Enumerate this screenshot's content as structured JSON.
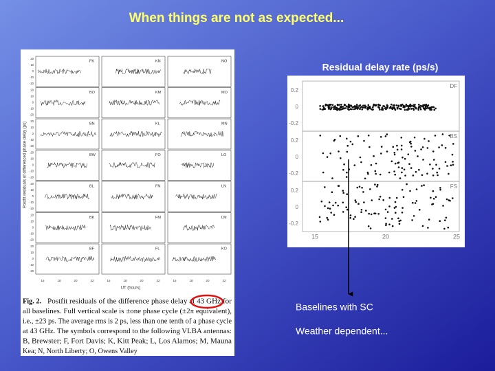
{
  "title": "When things are not as expected...",
  "left_figure": {
    "panel_labels": [
      "FK",
      "KN",
      "NO",
      "BO",
      "KM",
      "MO",
      "BN",
      "KL",
      "MN",
      "BW",
      "FO",
      "LO",
      "BL",
      "FN",
      "LN",
      "BK",
      "FM",
      "LM",
      "BF",
      "FL",
      "KO"
    ],
    "y_ticks": [
      "20",
      "10",
      "0",
      "-10",
      "-20"
    ],
    "x_ticks": [
      "16",
      "18",
      "20",
      "22"
    ],
    "y_axis_label": "Postfit residuals of differenced phase delay (ps)",
    "x_axis_label": "UT (hours)",
    "caption_label": "Fig. 2.",
    "caption_lines": [
      "Postfit residuals of the difference phase delay at 43 GHz for",
      "all baselines. Full vertical scale is ±one phase cycle (±2π equivalent),",
      "i.e., ±23 ps. The average rms is 2 ps, less than one tenth of a phase cycle",
      "at 43 GHz. The symbols correspond to the following VLBA antennas:",
      "B, Brewster; F, Fort Davis; K, Kitt Peak; L, Los Alamos; M, Mauna",
      "Kea; N, North Liberty; O, Owens Valley"
    ]
  },
  "right_figure": {
    "title": "Residual delay rate (ps/s)",
    "panel_labels": [
      "DF",
      "BS",
      "FS"
    ],
    "y_ticks": [
      "0.2",
      "0",
      "-0.2"
    ],
    "x_ticks": [
      "15",
      "20",
      "25"
    ]
  },
  "annotations": [
    "Baselines with SC",
    "Weather dependent..."
  ]
}
